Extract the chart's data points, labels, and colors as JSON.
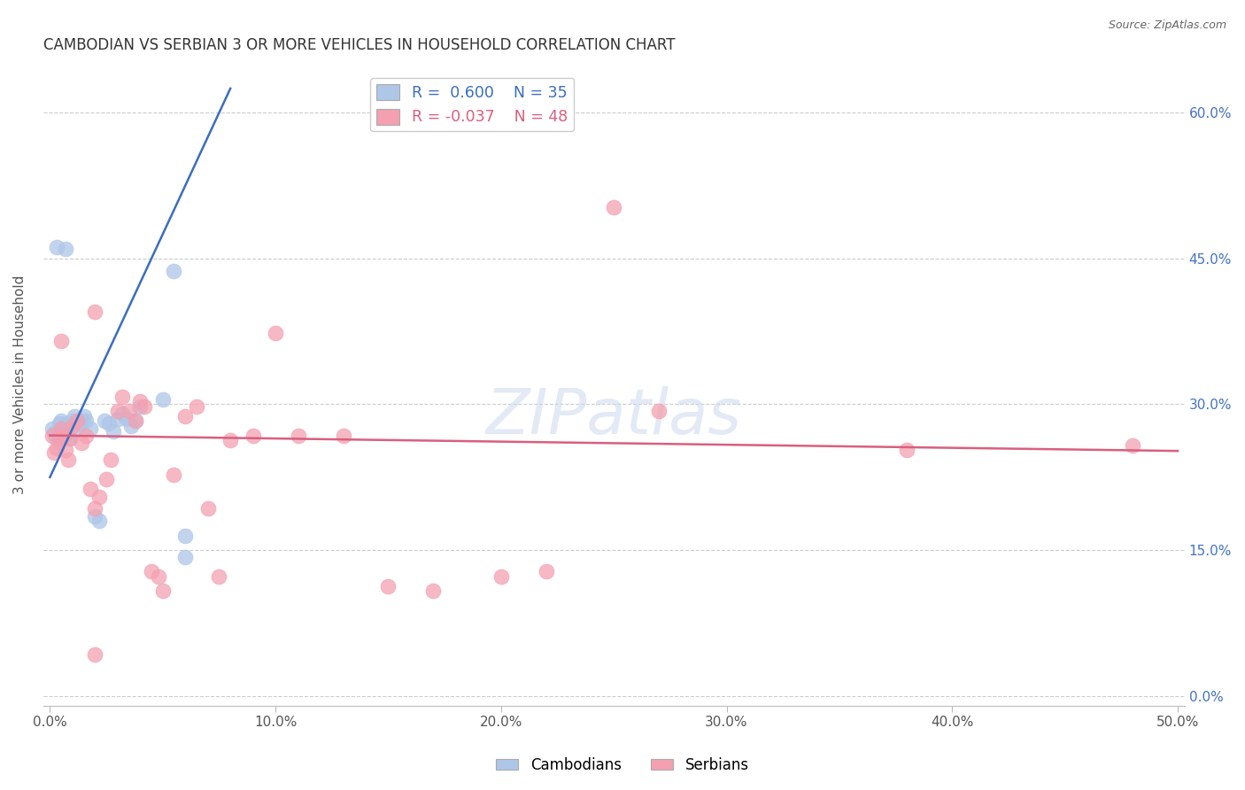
{
  "title": "CAMBODIAN VS SERBIAN 3 OR MORE VEHICLES IN HOUSEHOLD CORRELATION CHART",
  "source": "Source: ZipAtlas.com",
  "ylabel": "3 or more Vehicles in Household",
  "cambodian_R": 0.6,
  "cambodian_N": 35,
  "serbian_R": -0.037,
  "serbian_N": 48,
  "cambodian_color": "#aec6e8",
  "serbian_color": "#f4a0b0",
  "cambodian_line_color": "#3b6dbf",
  "serbian_line_color": "#d95f7f",
  "watermark_color": "#ccd8ee",
  "background_color": "#ffffff",
  "grid_color": "#cccccc",
  "xlim": [
    0.0,
    0.5
  ],
  "ylim": [
    0.0,
    0.64
  ],
  "x_ticks": [
    0.0,
    0.1,
    0.2,
    0.3,
    0.4,
    0.5
  ],
  "y_ticks": [
    0.0,
    0.15,
    0.3,
    0.45,
    0.6
  ],
  "right_tick_color": "#4472c4",
  "bottom_tick_color": "#555555",
  "camb_line_x0": 0.0,
  "camb_line_y0": 0.225,
  "camb_line_x1": 0.08,
  "camb_line_y1": 0.625,
  "serb_line_x0": 0.0,
  "serb_line_y0": 0.268,
  "serb_line_x1": 0.5,
  "serb_line_y1": 0.252,
  "cambodian_pts_x": [
    0.001,
    0.002,
    0.003,
    0.004,
    0.005,
    0.006,
    0.007,
    0.008,
    0.009,
    0.01,
    0.011,
    0.012,
    0.013,
    0.014,
    0.015,
    0.016,
    0.018,
    0.02,
    0.022,
    0.024,
    0.026,
    0.028,
    0.03,
    0.032,
    0.034,
    0.036,
    0.038,
    0.04,
    0.05,
    0.055,
    0.06,
    0.003,
    0.007,
    0.2,
    0.06
  ],
  "cambodian_pts_y": [
    0.275,
    0.27,
    0.265,
    0.28,
    0.283,
    0.277,
    0.28,
    0.27,
    0.265,
    0.283,
    0.288,
    0.275,
    0.28,
    0.283,
    0.288,
    0.283,
    0.275,
    0.185,
    0.18,
    0.283,
    0.28,
    0.272,
    0.285,
    0.29,
    0.285,
    0.278,
    0.283,
    0.298,
    0.305,
    0.437,
    0.143,
    0.462,
    0.46,
    0.62,
    0.165
  ],
  "serbian_pts_x": [
    0.001,
    0.002,
    0.003,
    0.004,
    0.005,
    0.006,
    0.007,
    0.008,
    0.009,
    0.01,
    0.012,
    0.014,
    0.016,
    0.018,
    0.02,
    0.022,
    0.025,
    0.027,
    0.03,
    0.032,
    0.035,
    0.038,
    0.04,
    0.042,
    0.045,
    0.048,
    0.05,
    0.055,
    0.06,
    0.065,
    0.07,
    0.075,
    0.08,
    0.09,
    0.1,
    0.11,
    0.13,
    0.15,
    0.17,
    0.2,
    0.22,
    0.25,
    0.27,
    0.38,
    0.48,
    0.005,
    0.02,
    0.02
  ],
  "serbian_pts_y": [
    0.268,
    0.25,
    0.255,
    0.265,
    0.275,
    0.268,
    0.253,
    0.243,
    0.265,
    0.278,
    0.283,
    0.26,
    0.268,
    0.213,
    0.193,
    0.205,
    0.223,
    0.243,
    0.293,
    0.308,
    0.293,
    0.283,
    0.303,
    0.298,
    0.128,
    0.123,
    0.108,
    0.228,
    0.288,
    0.298,
    0.193,
    0.123,
    0.263,
    0.268,
    0.373,
    0.268,
    0.268,
    0.113,
    0.108,
    0.123,
    0.128,
    0.503,
    0.293,
    0.253,
    0.258,
    0.365,
    0.395,
    0.043
  ]
}
